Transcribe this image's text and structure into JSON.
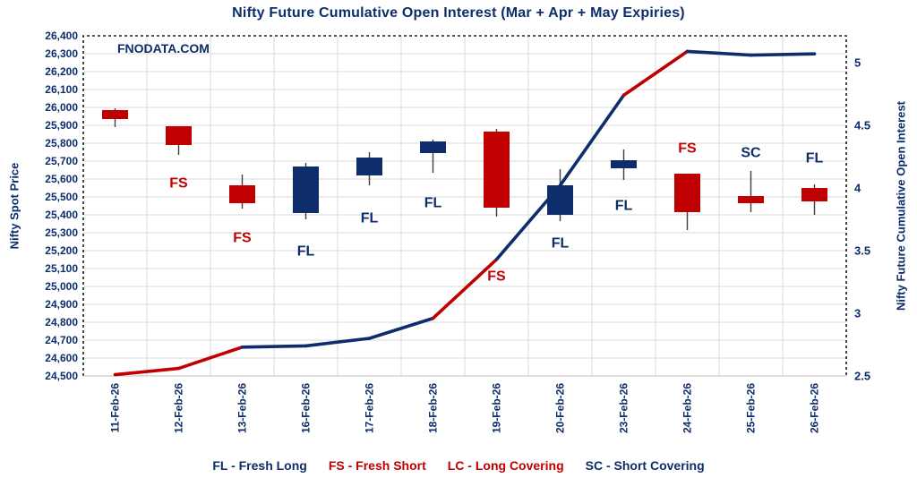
{
  "chart": {
    "title": "Nifty Future Cumulative Open Interest (Mar + Apr + May Expiries)",
    "watermark": "FNODATA.COM"
  },
  "chart_data": {
    "type": "candlestick+line",
    "title": "Nifty Future Cumulative Open Interest (Mar + Apr + May Expiries)",
    "categories": [
      "11-Feb-26",
      "12-Feb-26",
      "13-Feb-26",
      "16-Feb-26",
      "17-Feb-26",
      "18-Feb-26",
      "19-Feb-26",
      "20-Feb-26",
      "23-Feb-26",
      "24-Feb-26",
      "25-Feb-26",
      "26-Feb-26"
    ],
    "left_axis": {
      "title": "Nifty Spot Price",
      "min": 24500,
      "max": 26400,
      "step": 100,
      "tick_labels": [
        "26,400",
        "26,300",
        "26,200",
        "26,100",
        "26,000",
        "25,900",
        "25,800",
        "25,700",
        "25,600",
        "25,500",
        "25,400",
        "25,300",
        "25,200",
        "25,100",
        "25,000",
        "24,900",
        "24,800",
        "24,700",
        "24,600",
        "24,500"
      ]
    },
    "right_axis": {
      "title": "Nifty Future Cumulative Open Interest",
      "min": 2.5,
      "max": 5,
      "step": 0.5,
      "tick_labels": [
        "5",
        "4.5",
        "4",
        "3.5",
        "3",
        "2.5"
      ]
    },
    "candles": [
      {
        "date": "11-Feb-26",
        "open": 25985,
        "high": 25995,
        "low": 25890,
        "close": 25935,
        "color": "red",
        "label": null
      },
      {
        "date": "12-Feb-26",
        "open": 25895,
        "high": 25895,
        "low": 25735,
        "close": 25790,
        "color": "red",
        "label": {
          "text": "FS",
          "color": "red",
          "position": "below",
          "offset": 32
        }
      },
      {
        "date": "13-Feb-26",
        "open": 25565,
        "high": 25625,
        "low": 25435,
        "close": 25465,
        "color": "red",
        "label": {
          "text": "FS",
          "color": "red",
          "position": "below",
          "offset": 33
        }
      },
      {
        "date": "16-Feb-26",
        "open": 25410,
        "high": 25690,
        "low": 25375,
        "close": 25670,
        "color": "navy",
        "label": {
          "text": "FL",
          "color": "navy",
          "position": "below",
          "offset": 36
        }
      },
      {
        "date": "17-Feb-26",
        "open": 25620,
        "high": 25750,
        "low": 25565,
        "close": 25720,
        "color": "navy",
        "label": {
          "text": "FL",
          "color": "navy",
          "position": "below",
          "offset": 37
        }
      },
      {
        "date": "18-Feb-26",
        "open": 25745,
        "high": 25820,
        "low": 25635,
        "close": 25810,
        "color": "navy",
        "label": {
          "text": "FL",
          "color": "navy",
          "position": "below",
          "offset": 34
        }
      },
      {
        "date": "19-Feb-26",
        "open": 25865,
        "high": 25880,
        "low": 25390,
        "close": 25440,
        "color": "red",
        "label": {
          "text": "FS",
          "color": "red",
          "position": "below",
          "offset": 67
        }
      },
      {
        "date": "20-Feb-26",
        "open": 25400,
        "high": 25655,
        "low": 25365,
        "close": 25565,
        "color": "navy",
        "label": {
          "text": "FL",
          "color": "navy",
          "position": "below",
          "offset": 25
        }
      },
      {
        "date": "23-Feb-26",
        "open": 25660,
        "high": 25765,
        "low": 25595,
        "close": 25705,
        "color": "navy",
        "label": {
          "text": "FL",
          "color": "navy",
          "position": "below",
          "offset": 29
        }
      },
      {
        "date": "24-Feb-26",
        "open": 25630,
        "high": 25630,
        "low": 25315,
        "close": 25415,
        "color": "red",
        "label": {
          "text": "FS",
          "color": "red",
          "position": "above",
          "offset": 28
        }
      },
      {
        "date": "25-Feb-26",
        "open": 25505,
        "high": 25645,
        "low": 25415,
        "close": 25465,
        "color": "red",
        "label": {
          "text": "SC",
          "color": "navy",
          "position": "above",
          "offset": 20
        }
      },
      {
        "date": "26-Feb-26",
        "open": 25550,
        "high": 25570,
        "low": 25400,
        "close": 25475,
        "color": "red",
        "label": {
          "text": "FL",
          "color": "navy",
          "position": "above",
          "offset": 29
        }
      }
    ],
    "oi_line": {
      "name": "Nifty Future Cumulative Open Interest",
      "values": [
        2.51,
        2.56,
        2.73,
        2.74,
        2.8,
        2.96,
        3.43,
        4.02,
        4.74,
        5.09,
        5.06,
        5.07
      ],
      "segment_colors": [
        "red",
        "red",
        "navy",
        "navy",
        "navy",
        "red",
        "navy",
        "navy",
        "red",
        "navy",
        "navy"
      ]
    },
    "legend": [
      {
        "text": "FL - Fresh Long",
        "color": "navy"
      },
      {
        "text": "FS - Fresh Short",
        "color": "red"
      },
      {
        "text": "LC - Long Covering",
        "color": "red"
      },
      {
        "text": "SC - Short Covering",
        "color": "navy"
      }
    ],
    "colors": {
      "navy": "#0d2d6b",
      "red": "#c00000",
      "grid": "#d9d9d9",
      "wick": "#3f3f3f",
      "border": "#1a1a1a"
    }
  }
}
